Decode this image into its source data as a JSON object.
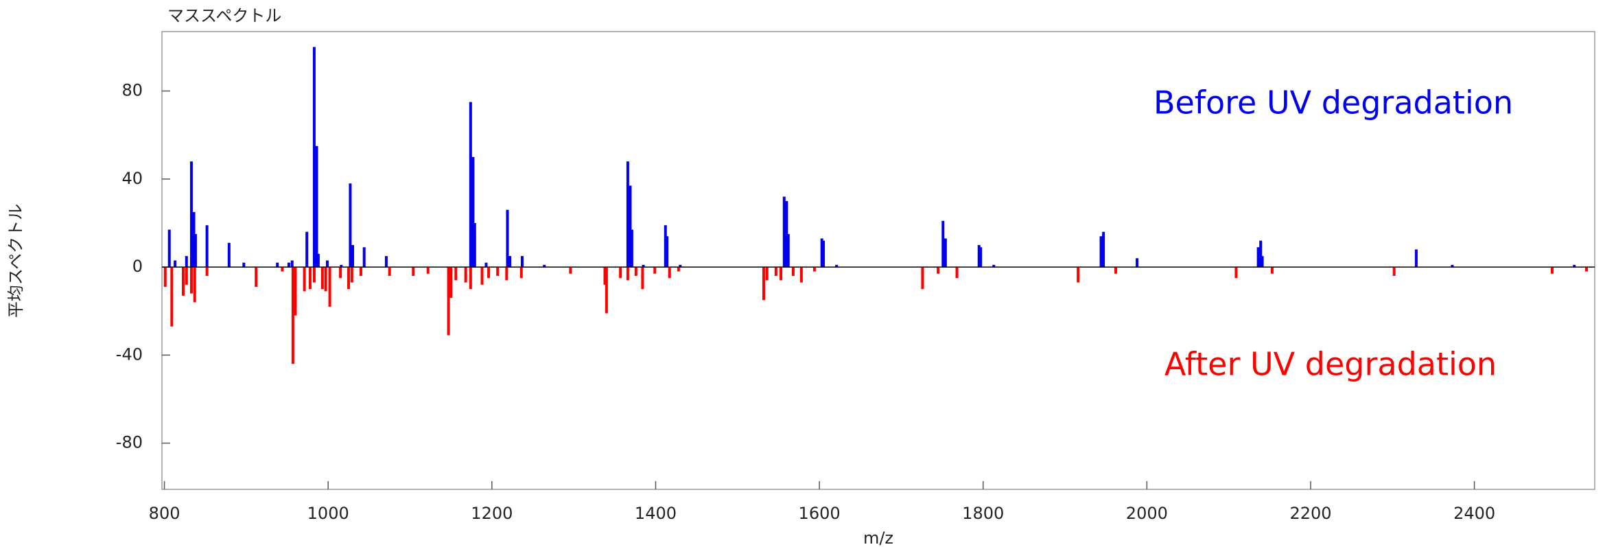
{
  "chart_data": {
    "type": "stem",
    "title": "マススペクトル",
    "x_label": "m/z",
    "y_label": "平均スペクトル",
    "annotations": [
      "Before UV degradation",
      "After UV degradation"
    ],
    "xlim": [
      797,
      2547
    ],
    "ylim": [
      -101,
      107
    ],
    "xticks": [
      800,
      1000,
      1200,
      1400,
      1600,
      1800,
      2000,
      2200,
      2400
    ],
    "yticks": [
      -80,
      -40,
      0,
      40,
      80
    ],
    "series": [
      {
        "name": "Before UV degradation",
        "color": "#0000ee",
        "x": [
          806,
          813,
          827,
          833,
          836,
          838,
          852,
          879,
          897,
          938,
          952,
          956,
          974,
          983,
          986,
          988,
          999,
          1016,
          1027,
          1030,
          1044,
          1071,
          1174,
          1177,
          1179,
          1193,
          1219,
          1222,
          1237,
          1264,
          1366,
          1369,
          1371,
          1385,
          1412,
          1414,
          1430,
          1557,
          1560,
          1562,
          1603,
          1605,
          1621,
          1751,
          1754,
          1795,
          1797,
          1813,
          1944,
          1947,
          1988,
          2136,
          2139,
          2141,
          2329,
          2373,
          2522
        ],
        "values": [
          17,
          3,
          5,
          48,
          25,
          15,
          19,
          11,
          2,
          2,
          2,
          3,
          16,
          100,
          55,
          6,
          3,
          1,
          38,
          10,
          9,
          5,
          75,
          50,
          20,
          2,
          26,
          5,
          5,
          1,
          48,
          37,
          17,
          1,
          19,
          14,
          1,
          32,
          30,
          15,
          13,
          12,
          1,
          21,
          13,
          10,
          9,
          1,
          14,
          16,
          4,
          9,
          12,
          5,
          8,
          1,
          1
        ]
      },
      {
        "name": "After UV degradation",
        "color": "#ff0000",
        "x": [
          801,
          809,
          823,
          827,
          833,
          837,
          852,
          912,
          944,
          957,
          960,
          971,
          978,
          983,
          993,
          997,
          1002,
          1015,
          1025,
          1029,
          1040,
          1075,
          1104,
          1122,
          1147,
          1150,
          1156,
          1168,
          1174,
          1188,
          1196,
          1207,
          1218,
          1236,
          1296,
          1338,
          1340,
          1357,
          1366,
          1376,
          1384,
          1399,
          1417,
          1428,
          1532,
          1536,
          1547,
          1553,
          1568,
          1578,
          1594,
          1726,
          1745,
          1768,
          1916,
          1962,
          2109,
          2153,
          2302,
          2495,
          2537
        ],
        "values": [
          -9,
          -27,
          -13,
          -8,
          -12,
          -16,
          -4,
          -9,
          -2,
          -44,
          -22,
          -11,
          -10,
          -7,
          -10,
          -11,
          -18,
          -5,
          -10,
          -7,
          -4,
          -4,
          -4,
          -3,
          -31,
          -14,
          -6,
          -7,
          -10,
          -8,
          -5,
          -4,
          -6,
          -5,
          -3,
          -8,
          -21,
          -5,
          -6,
          -4,
          -10,
          -3,
          -5,
          -2,
          -15,
          -6,
          -4,
          -6,
          -4,
          -7,
          -2,
          -10,
          -3,
          -5,
          -7,
          -3,
          -5,
          -3,
          -4,
          -3,
          -2
        ]
      }
    ]
  }
}
